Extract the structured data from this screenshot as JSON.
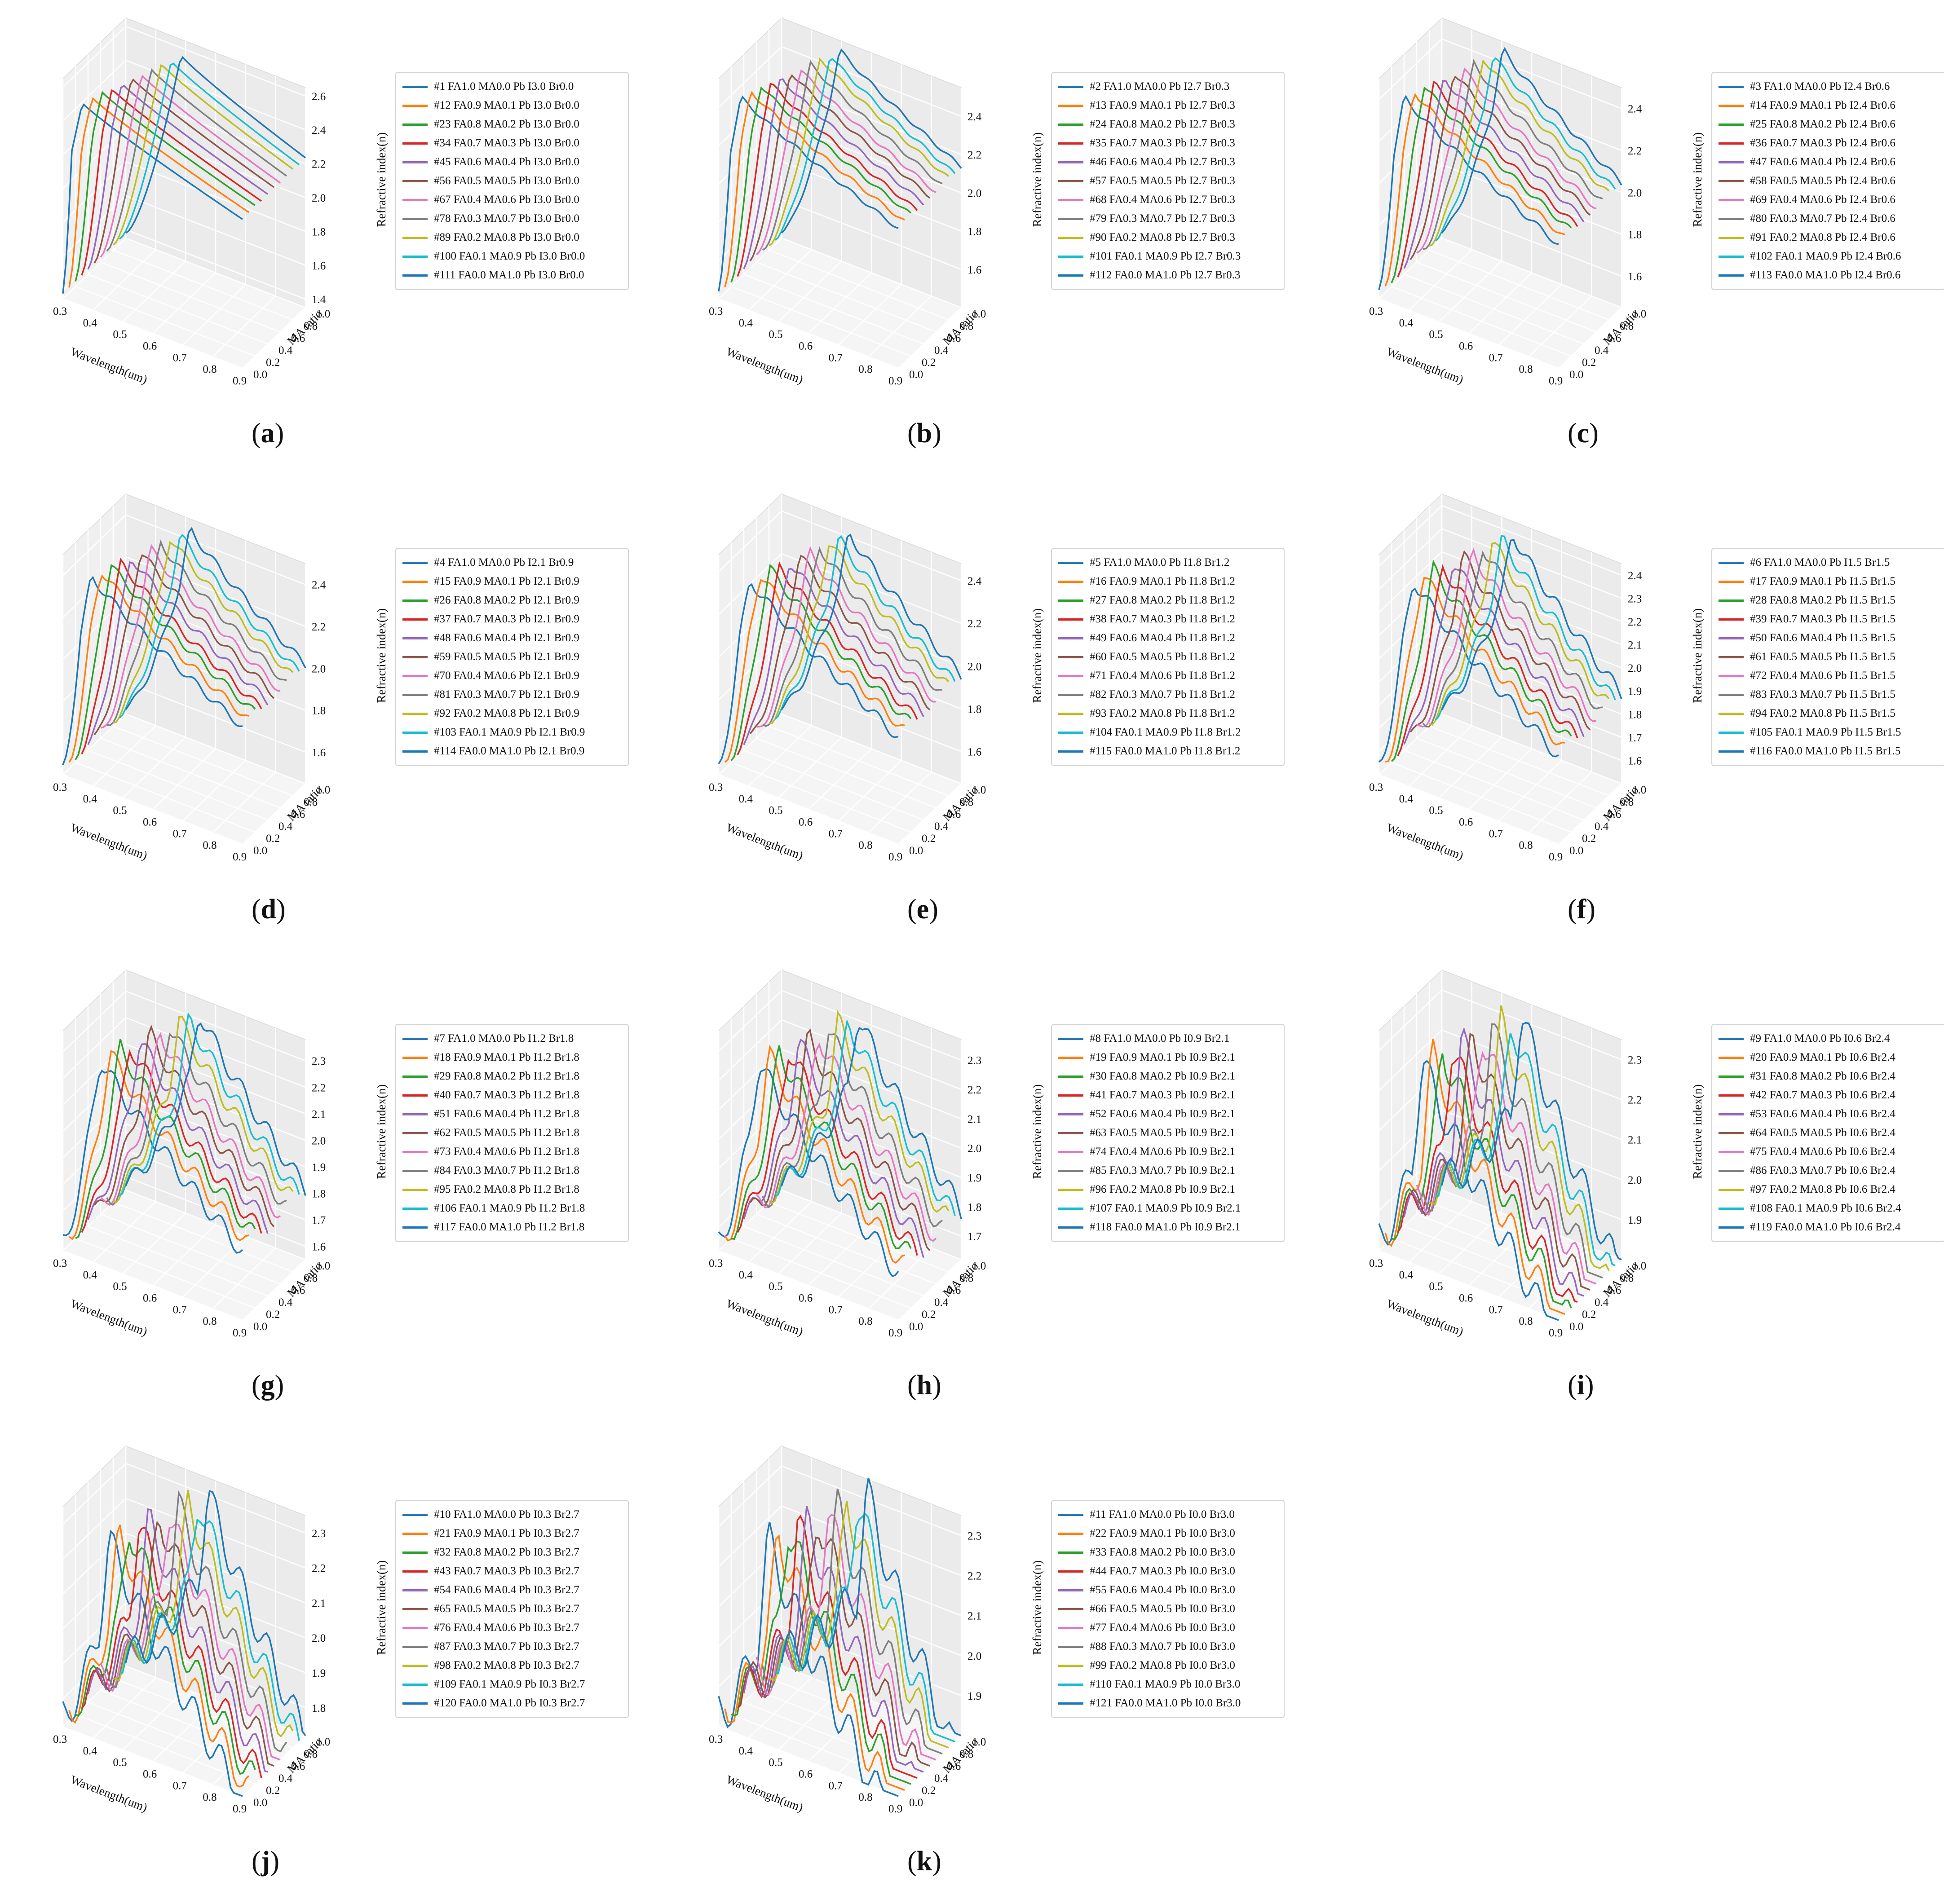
{
  "colors": [
    "#1f77b4",
    "#ff7f0e",
    "#2ca02c",
    "#d62728",
    "#9467bd",
    "#8c564b",
    "#e377c2",
    "#7f7f7f",
    "#bcbd22",
    "#17becf",
    "#1f77b4"
  ],
  "chart_data": [
    {
      "type": "line",
      "label": "a",
      "xlabel": "Wavelength(um)",
      "ylabel": "MA ratio",
      "zlabel": "Refractive index(n)",
      "xticks": [
        "0.3",
        "0.4",
        "0.5",
        "0.6",
        "0.7",
        "0.8",
        "0.9"
      ],
      "yticks": [
        "0.0",
        "0.2",
        "0.4",
        "0.6",
        "0.8",
        "1.0"
      ],
      "zticks": [
        "1.4",
        "1.6",
        "1.8",
        "2.0",
        "2.2",
        "2.4",
        "2.6"
      ],
      "zlim": [
        1.35,
        2.65
      ],
      "peak_n": 2.55,
      "edge": 0.33,
      "wiggle": 0.0,
      "drop_extra": 0.0,
      "series": [
        {
          "name": "#1 FA1.0 MA0.0 Pb I3.0 Br0.0"
        },
        {
          "name": "#12 FA0.9 MA0.1 Pb I3.0 Br0.0"
        },
        {
          "name": "#23 FA0.8 MA0.2 Pb I3.0 Br0.0"
        },
        {
          "name": "#34 FA0.7 MA0.3 Pb I3.0 Br0.0"
        },
        {
          "name": "#45 FA0.6 MA0.4 Pb I3.0 Br0.0"
        },
        {
          "name": "#56 FA0.5 MA0.5 Pb I3.0 Br0.0"
        },
        {
          "name": "#67 FA0.4 MA0.6 Pb I3.0 Br0.0"
        },
        {
          "name": "#78 FA0.3 MA0.7 Pb I3.0 Br0.0"
        },
        {
          "name": "#89 FA0.2 MA0.8 Pb I3.0 Br0.0"
        },
        {
          "name": "#100 FA0.1 MA0.9 Pb I3.0 Br0.0"
        },
        {
          "name": "#111 FA0.0 MA1.0 Pb I3.0 Br0.0"
        }
      ]
    },
    {
      "type": "line",
      "label": "b",
      "xlabel": "Wavelength(um)",
      "ylabel": "MA ratio",
      "zlabel": "Refractive index(n)",
      "xticks": [
        "0.3",
        "0.4",
        "0.5",
        "0.6",
        "0.7",
        "0.8",
        "0.9"
      ],
      "yticks": [
        "0.0",
        "0.2",
        "0.4",
        "0.6",
        "0.8",
        "1.0"
      ],
      "zticks": [
        "1.6",
        "1.8",
        "2.0",
        "2.2",
        "2.4"
      ],
      "zlim": [
        1.4,
        2.55
      ],
      "peak_n": 2.5,
      "edge": 0.34,
      "wiggle": 0.01,
      "drop_extra": 0.05,
      "series": [
        {
          "name": "#2 FA1.0 MA0.0 Pb I2.7 Br0.3"
        },
        {
          "name": "#13 FA0.9 MA0.1 Pb I2.7 Br0.3"
        },
        {
          "name": "#24 FA0.8 MA0.2 Pb I2.7 Br0.3"
        },
        {
          "name": "#35 FA0.7 MA0.3 Pb I2.7 Br0.3"
        },
        {
          "name": "#46 FA0.6 MA0.4 Pb I2.7 Br0.3"
        },
        {
          "name": "#57 FA0.5 MA0.5 Pb I2.7 Br0.3"
        },
        {
          "name": "#68 FA0.4 MA0.6 Pb I2.7 Br0.3"
        },
        {
          "name": "#79 FA0.3 MA0.7 Pb I2.7 Br0.3"
        },
        {
          "name": "#90 FA0.2 MA0.8 Pb I2.7 Br0.3"
        },
        {
          "name": "#101 FA0.1 MA0.9 Pb I2.7 Br0.3"
        },
        {
          "name": "#112 FA0.0 MA1.0 Pb I2.7 Br0.3"
        }
      ]
    },
    {
      "type": "line",
      "label": "c",
      "xlabel": "Wavelength(um)",
      "ylabel": "MA ratio",
      "zlabel": "Refractive index(n)",
      "xticks": [
        "0.3",
        "0.4",
        "0.5",
        "0.6",
        "0.7",
        "0.8",
        "0.9"
      ],
      "yticks": [
        "0.0",
        "0.2",
        "0.4",
        "0.6",
        "0.8",
        "1.0"
      ],
      "zticks": [
        "1.6",
        "1.8",
        "2.0",
        "2.2",
        "2.4"
      ],
      "zlim": [
        1.45,
        2.5
      ],
      "peak_n": 2.46,
      "edge": 0.35,
      "wiggle": 0.015,
      "drop_extra": 0.1,
      "series": [
        {
          "name": "#3 FA1.0 MA0.0 Pb I2.4 Br0.6"
        },
        {
          "name": "#14 FA0.9 MA0.1 Pb I2.4 Br0.6"
        },
        {
          "name": "#25 FA0.8 MA0.2 Pb I2.4 Br0.6"
        },
        {
          "name": "#36 FA0.7 MA0.3 Pb I2.4 Br0.6"
        },
        {
          "name": "#47 FA0.6 MA0.4 Pb I2.4 Br0.6"
        },
        {
          "name": "#58 FA0.5 MA0.5 Pb I2.4 Br0.6"
        },
        {
          "name": "#69 FA0.4 MA0.6 Pb I2.4 Br0.6"
        },
        {
          "name": "#80 FA0.3 MA0.7 Pb I2.4 Br0.6"
        },
        {
          "name": "#91 FA0.2 MA0.8 Pb I2.4 Br0.6"
        },
        {
          "name": "#102 FA0.1 MA0.9 Pb I2.4 Br0.6"
        },
        {
          "name": "#113 FA0.0 MA1.0 Pb I2.4 Br0.6"
        }
      ]
    },
    {
      "type": "line",
      "label": "d",
      "xlabel": "Wavelength(um)",
      "ylabel": "MA ratio",
      "zlabel": "Refractive index(n)",
      "xticks": [
        "0.3",
        "0.4",
        "0.5",
        "0.6",
        "0.7",
        "0.8",
        "0.9"
      ],
      "yticks": [
        "0.0",
        "0.2",
        "0.4",
        "0.6",
        "0.8",
        "1.0"
      ],
      "zticks": [
        "1.6",
        "1.8",
        "2.0",
        "2.2",
        "2.4"
      ],
      "zlim": [
        1.45,
        2.5
      ],
      "peak_n": 2.45,
      "edge": 0.36,
      "wiggle": 0.02,
      "drop_extra": 0.12,
      "series": [
        {
          "name": "#4 FA1.0 MA0.0 Pb I2.1 Br0.9"
        },
        {
          "name": "#15 FA0.9 MA0.1 Pb I2.1 Br0.9"
        },
        {
          "name": "#26 FA0.8 MA0.2 Pb I2.1 Br0.9"
        },
        {
          "name": "#37 FA0.7 MA0.3 Pb I2.1 Br0.9"
        },
        {
          "name": "#48 FA0.6 MA0.4 Pb I2.1 Br0.9"
        },
        {
          "name": "#59 FA0.5 MA0.5 Pb I2.1 Br0.9"
        },
        {
          "name": "#70 FA0.4 MA0.6 Pb I2.1 Br0.9"
        },
        {
          "name": "#81 FA0.3 MA0.7 Pb I2.1 Br0.9"
        },
        {
          "name": "#92 FA0.2 MA0.8 Pb I2.1 Br0.9"
        },
        {
          "name": "#103 FA0.1 MA0.9 Pb I2.1 Br0.9"
        },
        {
          "name": "#114 FA0.0 MA1.0 Pb I2.1 Br0.9"
        }
      ]
    },
    {
      "type": "line",
      "label": "e",
      "xlabel": "Wavelength(um)",
      "ylabel": "MA ratio",
      "zlabel": "Refractive index(n)",
      "xticks": [
        "0.3",
        "0.4",
        "0.5",
        "0.6",
        "0.7",
        "0.8",
        "0.9"
      ],
      "yticks": [
        "0.0",
        "0.2",
        "0.4",
        "0.6",
        "0.8",
        "1.0"
      ],
      "zticks": [
        "1.6",
        "1.8",
        "2.0",
        "2.2",
        "2.4"
      ],
      "zlim": [
        1.45,
        2.48
      ],
      "peak_n": 2.42,
      "edge": 0.37,
      "wiggle": 0.025,
      "drop_extra": 0.15,
      "series": [
        {
          "name": "#5 FA1.0 MA0.0 Pb I1.8 Br1.2"
        },
        {
          "name": "#16 FA0.9 MA0.1 Pb I1.8 Br1.2"
        },
        {
          "name": "#27 FA0.8 MA0.2 Pb I1.8 Br1.2"
        },
        {
          "name": "#38 FA0.7 MA0.3 Pb I1.8 Br1.2"
        },
        {
          "name": "#49 FA0.6 MA0.4 Pb I1.8 Br1.2"
        },
        {
          "name": "#60 FA0.5 MA0.5 Pb I1.8 Br1.2"
        },
        {
          "name": "#71 FA0.4 MA0.6 Pb I1.8 Br1.2"
        },
        {
          "name": "#82 FA0.3 MA0.7 Pb I1.8 Br1.2"
        },
        {
          "name": "#93 FA0.2 MA0.8 Pb I1.8 Br1.2"
        },
        {
          "name": "#104 FA0.1 MA0.9 Pb I1.8 Br1.2"
        },
        {
          "name": "#115 FA0.0 MA1.0 Pb I1.8 Br1.2"
        }
      ]
    },
    {
      "type": "line",
      "label": "f",
      "xlabel": "Wavelength(um)",
      "ylabel": "MA ratio",
      "zlabel": "Refractive index(n)",
      "xticks": [
        "0.3",
        "0.4",
        "0.5",
        "0.6",
        "0.7",
        "0.8",
        "0.9"
      ],
      "yticks": [
        "0.0",
        "0.2",
        "0.4",
        "0.6",
        "0.8",
        "1.0"
      ],
      "zticks": [
        "1.6",
        "1.7",
        "1.8",
        "1.9",
        "2.0",
        "2.1",
        "2.2",
        "2.3",
        "2.4"
      ],
      "zlim": [
        1.5,
        2.45
      ],
      "peak_n": 2.4,
      "edge": 0.38,
      "wiggle": 0.03,
      "drop_extra": 0.2,
      "series": [
        {
          "name": "#6 FA1.0 MA0.0 Pb I1.5 Br1.5"
        },
        {
          "name": "#17 FA0.9 MA0.1 Pb I1.5 Br1.5"
        },
        {
          "name": "#28 FA0.8 MA0.2 Pb I1.5 Br1.5"
        },
        {
          "name": "#39 FA0.7 MA0.3 Pb I1.5 Br1.5"
        },
        {
          "name": "#50 FA0.6 MA0.4 Pb I1.5 Br1.5"
        },
        {
          "name": "#61 FA0.5 MA0.5 Pb I1.5 Br1.5"
        },
        {
          "name": "#72 FA0.4 MA0.6 Pb I1.5 Br1.5"
        },
        {
          "name": "#83 FA0.3 MA0.7 Pb I1.5 Br1.5"
        },
        {
          "name": "#94 FA0.2 MA0.8 Pb I1.5 Br1.5"
        },
        {
          "name": "#105 FA0.1 MA0.9 Pb I1.5 Br1.5"
        },
        {
          "name": "#116 FA0.0 MA1.0 Pb I1.5 Br1.5"
        }
      ]
    },
    {
      "type": "line",
      "label": "g",
      "xlabel": "Wavelength(um)",
      "ylabel": "MA ratio",
      "zlabel": "Refractive index(n)",
      "xticks": [
        "0.3",
        "0.4",
        "0.5",
        "0.6",
        "0.7",
        "0.8",
        "0.9"
      ],
      "yticks": [
        "0.0",
        "0.2",
        "0.4",
        "0.6",
        "0.8",
        "1.0"
      ],
      "zticks": [
        "1.6",
        "1.7",
        "1.8",
        "1.9",
        "2.0",
        "2.1",
        "2.2",
        "2.3"
      ],
      "zlim": [
        1.55,
        2.38
      ],
      "peak_n": 2.33,
      "edge": 0.39,
      "wiggle": 0.035,
      "drop_extra": 0.2,
      "series": [
        {
          "name": "#7 FA1.0 MA0.0 Pb I1.2 Br1.8"
        },
        {
          "name": "#18 FA0.9 MA0.1 Pb I1.2 Br1.8"
        },
        {
          "name": "#29 FA0.8 MA0.2 Pb I1.2 Br1.8"
        },
        {
          "name": "#40 FA0.7 MA0.3 Pb I1.2 Br1.8"
        },
        {
          "name": "#51 FA0.6 MA0.4 Pb I1.2 Br1.8"
        },
        {
          "name": "#62 FA0.5 MA0.5 Pb I1.2 Br1.8"
        },
        {
          "name": "#73 FA0.4 MA0.6 Pb I1.2 Br1.8"
        },
        {
          "name": "#84 FA0.3 MA0.7 Pb I1.2 Br1.8"
        },
        {
          "name": "#95 FA0.2 MA0.8 Pb I1.2 Br1.8"
        },
        {
          "name": "#106 FA0.1 MA0.9 Pb I1.2 Br1.8"
        },
        {
          "name": "#117 FA0.0 MA1.0 Pb I1.2 Br1.8"
        }
      ]
    },
    {
      "type": "line",
      "label": "h",
      "xlabel": "Wavelength(um)",
      "ylabel": "MA ratio",
      "zlabel": "Refractive index(n)",
      "xticks": [
        "0.3",
        "0.4",
        "0.5",
        "0.6",
        "0.7",
        "0.8",
        "0.9"
      ],
      "yticks": [
        "0.0",
        "0.2",
        "0.4",
        "0.6",
        "0.8",
        "1.0"
      ],
      "zticks": [
        "1.7",
        "1.8",
        "1.9",
        "2.0",
        "2.1",
        "2.2",
        "2.3"
      ],
      "zlim": [
        1.62,
        2.37
      ],
      "peak_n": 2.32,
      "edge": 0.4,
      "wiggle": 0.04,
      "drop_extra": 0.22,
      "series": [
        {
          "name": "#8 FA1.0 MA0.0 Pb I0.9 Br2.1"
        },
        {
          "name": "#19 FA0.9 MA0.1 Pb I0.9 Br2.1"
        },
        {
          "name": "#30 FA0.8 MA0.2 Pb I0.9 Br2.1"
        },
        {
          "name": "#41 FA0.7 MA0.3 Pb I0.9 Br2.1"
        },
        {
          "name": "#52 FA0.6 MA0.4 Pb I0.9 Br2.1"
        },
        {
          "name": "#63 FA0.5 MA0.5 Pb I0.9 Br2.1"
        },
        {
          "name": "#74 FA0.4 MA0.6 Pb I0.9 Br2.1"
        },
        {
          "name": "#85 FA0.3 MA0.7 Pb I0.9 Br2.1"
        },
        {
          "name": "#96 FA0.2 MA0.8 Pb I0.9 Br2.1"
        },
        {
          "name": "#107 FA0.1 MA0.9 Pb I0.9 Br2.1"
        },
        {
          "name": "#118 FA0.0 MA1.0 Pb I0.9 Br2.1"
        }
      ]
    },
    {
      "type": "line",
      "label": "i",
      "xlabel": "Wavelength(um)",
      "ylabel": "MA ratio",
      "zlabel": "Refractive index(n)",
      "xticks": [
        "0.3",
        "0.4",
        "0.5",
        "0.6",
        "0.7",
        "0.8",
        "0.9"
      ],
      "yticks": [
        "0.0",
        "0.2",
        "0.4",
        "0.6",
        "0.8",
        "1.0"
      ],
      "zticks": [
        "1.9",
        "2.0",
        "2.1",
        "2.2",
        "2.3"
      ],
      "zlim": [
        1.8,
        2.35
      ],
      "peak_n": 2.32,
      "edge": 0.41,
      "wiggle": 0.045,
      "drop_extra": 0.25,
      "series": [
        {
          "name": "#9 FA1.0 MA0.0 Pb I0.6 Br2.4"
        },
        {
          "name": "#20 FA0.9 MA0.1 Pb I0.6 Br2.4"
        },
        {
          "name": "#31 FA0.8 MA0.2 Pb I0.6 Br2.4"
        },
        {
          "name": "#42 FA0.7 MA0.3 Pb I0.6 Br2.4"
        },
        {
          "name": "#53 FA0.6 MA0.4 Pb I0.6 Br2.4"
        },
        {
          "name": "#64 FA0.5 MA0.5 Pb I0.6 Br2.4"
        },
        {
          "name": "#75 FA0.4 MA0.6 Pb I0.6 Br2.4"
        },
        {
          "name": "#86 FA0.3 MA0.7 Pb I0.6 Br2.4"
        },
        {
          "name": "#97 FA0.2 MA0.8 Pb I0.6 Br2.4"
        },
        {
          "name": "#108 FA0.1 MA0.9 Pb I0.6 Br2.4"
        },
        {
          "name": "#119 FA0.0 MA1.0 Pb I0.6 Br2.4"
        }
      ]
    },
    {
      "type": "line",
      "label": "j",
      "xlabel": "Wavelength(um)",
      "ylabel": "MA ratio",
      "zlabel": "Refractive index(n)",
      "xticks": [
        "0.3",
        "0.4",
        "0.5",
        "0.6",
        "0.7",
        "0.8",
        "0.9"
      ],
      "yticks": [
        "0.0",
        "0.2",
        "0.4",
        "0.6",
        "0.8",
        "1.0"
      ],
      "zticks": [
        "1.8",
        "1.9",
        "2.0",
        "2.1",
        "2.2",
        "2.3"
      ],
      "zlim": [
        1.72,
        2.35
      ],
      "peak_n": 2.31,
      "edge": 0.42,
      "wiggle": 0.05,
      "drop_extra": 0.28,
      "series": [
        {
          "name": "#10 FA1.0 MA0.0 Pb I0.3 Br2.7"
        },
        {
          "name": "#21 FA0.9 MA0.1 Pb I0.3 Br2.7"
        },
        {
          "name": "#32 FA0.8 MA0.2 Pb I0.3 Br2.7"
        },
        {
          "name": "#43 FA0.7 MA0.3 Pb I0.3 Br2.7"
        },
        {
          "name": "#54 FA0.6 MA0.4 Pb I0.3 Br2.7"
        },
        {
          "name": "#65 FA0.5 MA0.5 Pb I0.3 Br2.7"
        },
        {
          "name": "#76 FA0.4 MA0.6 Pb I0.3 Br2.7"
        },
        {
          "name": "#87 FA0.3 MA0.7 Pb I0.3 Br2.7"
        },
        {
          "name": "#98 FA0.2 MA0.8 Pb I0.3 Br2.7"
        },
        {
          "name": "#109 FA0.1 MA0.9 Pb I0.3 Br2.7"
        },
        {
          "name": "#120 FA0.0 MA1.0 Pb I0.3 Br2.7"
        }
      ]
    },
    {
      "type": "line",
      "label": "k",
      "xlabel": "Wavelength(um)",
      "ylabel": "MA ratio",
      "zlabel": "Refractive index(n)",
      "xticks": [
        "0.3",
        "0.4",
        "0.5",
        "0.6",
        "0.7",
        "0.8",
        "0.9"
      ],
      "yticks": [
        "0.0",
        "0.2",
        "0.4",
        "0.6",
        "0.8",
        "1.0"
      ],
      "zticks": [
        "1.9",
        "2.0",
        "2.1",
        "2.2",
        "2.3"
      ],
      "zlim": [
        1.8,
        2.35
      ],
      "peak_n": 2.32,
      "edge": 0.43,
      "wiggle": 0.055,
      "drop_extra": 0.3,
      "series": [
        {
          "name": "#11 FA1.0 MA0.0 Pb I0.0 Br3.0"
        },
        {
          "name": "#22 FA0.9 MA0.1 Pb I0.0 Br3.0"
        },
        {
          "name": "#33 FA0.8 MA0.2 Pb I0.0 Br3.0"
        },
        {
          "name": "#44 FA0.7 MA0.3 Pb I0.0 Br3.0"
        },
        {
          "name": "#55 FA0.6 MA0.4 Pb I0.0 Br3.0"
        },
        {
          "name": "#66 FA0.5 MA0.5 Pb I0.0 Br3.0"
        },
        {
          "name": "#77 FA0.4 MA0.6 Pb I0.0 Br3.0"
        },
        {
          "name": "#88 FA0.3 MA0.7 Pb I0.0 Br3.0"
        },
        {
          "name": "#99 FA0.2 MA0.8 Pb I0.0 Br3.0"
        },
        {
          "name": "#110 FA0.1 MA0.9 Pb I0.0 Br3.0"
        },
        {
          "name": "#121 FA0.0 MA1.0 Pb I0.0 Br3.0"
        }
      ]
    }
  ]
}
